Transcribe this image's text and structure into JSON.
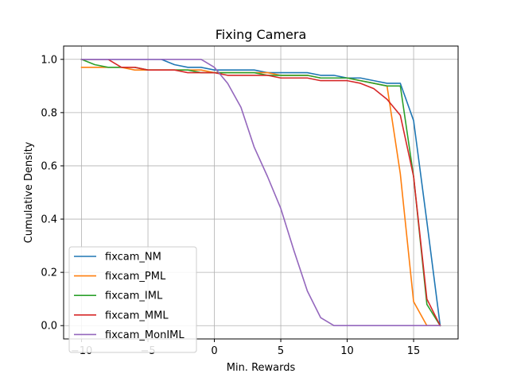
{
  "chart_data": {
    "type": "line",
    "title": "Fixing Camera",
    "xlabel": "Min. Rewards",
    "ylabel": "Cumulative Density",
    "xlim": [
      -11.35,
      18.35
    ],
    "ylim": [
      -0.05,
      1.05
    ],
    "xticks": [
      -10,
      -5,
      0,
      5,
      10,
      15
    ],
    "xtick_labels": [
      "−10",
      "−5",
      "0",
      "5",
      "10",
      "15"
    ],
    "yticks": [
      0.0,
      0.2,
      0.4,
      0.6,
      0.8,
      1.0
    ],
    "ytick_labels": [
      "0.0",
      "0.2",
      "0.4",
      "0.6",
      "0.8",
      "1.0"
    ],
    "grid": true,
    "legend_position": "lower-left",
    "series": [
      {
        "name": "fixcam_NM",
        "color": "#1f77b4",
        "x": [
          -10,
          -9,
          -8,
          -7,
          -6,
          -5,
          -4,
          -3,
          -2,
          -1,
          0,
          1,
          2,
          3,
          4,
          5,
          6,
          7,
          8,
          9,
          10,
          11,
          12,
          13,
          14,
          15,
          16,
          17
        ],
        "y": [
          1.0,
          1.0,
          1.0,
          1.0,
          1.0,
          1.0,
          1.0,
          0.98,
          0.97,
          0.97,
          0.96,
          0.96,
          0.96,
          0.96,
          0.95,
          0.95,
          0.95,
          0.95,
          0.94,
          0.94,
          0.93,
          0.93,
          0.92,
          0.91,
          0.91,
          0.77,
          0.39,
          0.0
        ]
      },
      {
        "name": "fixcam_PML",
        "color": "#ff7f0e",
        "x": [
          -10,
          -9,
          -8,
          -7,
          -6,
          -5,
          -4,
          -3,
          -2,
          -1,
          0,
          1,
          2,
          3,
          4,
          5,
          6,
          7,
          8,
          9,
          10,
          11,
          12,
          13,
          14,
          15,
          16,
          17
        ],
        "y": [
          0.97,
          0.97,
          0.97,
          0.97,
          0.96,
          0.96,
          0.96,
          0.96,
          0.96,
          0.96,
          0.95,
          0.95,
          0.95,
          0.95,
          0.95,
          0.94,
          0.94,
          0.94,
          0.93,
          0.93,
          0.93,
          0.92,
          0.91,
          0.9,
          0.57,
          0.09,
          0.0,
          0.0
        ]
      },
      {
        "name": "fixcam_IML",
        "color": "#2ca02c",
        "x": [
          -10,
          -9,
          -8,
          -7,
          -6,
          -5,
          -4,
          -3,
          -2,
          -1,
          0,
          1,
          2,
          3,
          4,
          5,
          6,
          7,
          8,
          9,
          10,
          11,
          12,
          13,
          14,
          15,
          16,
          17
        ],
        "y": [
          1.0,
          0.98,
          0.97,
          0.97,
          0.97,
          0.96,
          0.96,
          0.96,
          0.96,
          0.95,
          0.95,
          0.95,
          0.95,
          0.95,
          0.94,
          0.94,
          0.94,
          0.94,
          0.93,
          0.93,
          0.93,
          0.92,
          0.91,
          0.9,
          0.9,
          0.56,
          0.08,
          0.0
        ]
      },
      {
        "name": "fixcam_MML",
        "color": "#d62728",
        "x": [
          -10,
          -9,
          -8,
          -7,
          -6,
          -5,
          -4,
          -3,
          -2,
          -1,
          0,
          1,
          2,
          3,
          4,
          5,
          6,
          7,
          8,
          9,
          10,
          11,
          12,
          13,
          14,
          15,
          16,
          17
        ],
        "y": [
          1.0,
          1.0,
          1.0,
          0.97,
          0.97,
          0.96,
          0.96,
          0.96,
          0.95,
          0.95,
          0.95,
          0.94,
          0.94,
          0.94,
          0.94,
          0.93,
          0.93,
          0.93,
          0.92,
          0.92,
          0.92,
          0.91,
          0.89,
          0.85,
          0.79,
          0.56,
          0.1,
          0.0
        ]
      },
      {
        "name": "fixcam_MonIML",
        "color": "#9467bd",
        "x": [
          -10,
          -9,
          -8,
          -7,
          -6,
          -5,
          -4,
          -3,
          -2,
          -1,
          0,
          1,
          2,
          3,
          4,
          5,
          6,
          7,
          8,
          9,
          10,
          11,
          12,
          13,
          14,
          15,
          16,
          17
        ],
        "y": [
          1.0,
          1.0,
          1.0,
          1.0,
          1.0,
          1.0,
          1.0,
          1.0,
          1.0,
          1.0,
          0.97,
          0.91,
          0.82,
          0.67,
          0.56,
          0.44,
          0.28,
          0.13,
          0.03,
          0.0,
          0.0,
          0.0,
          0.0,
          0.0,
          0.0,
          0.0,
          0.0,
          0.0
        ]
      }
    ]
  }
}
